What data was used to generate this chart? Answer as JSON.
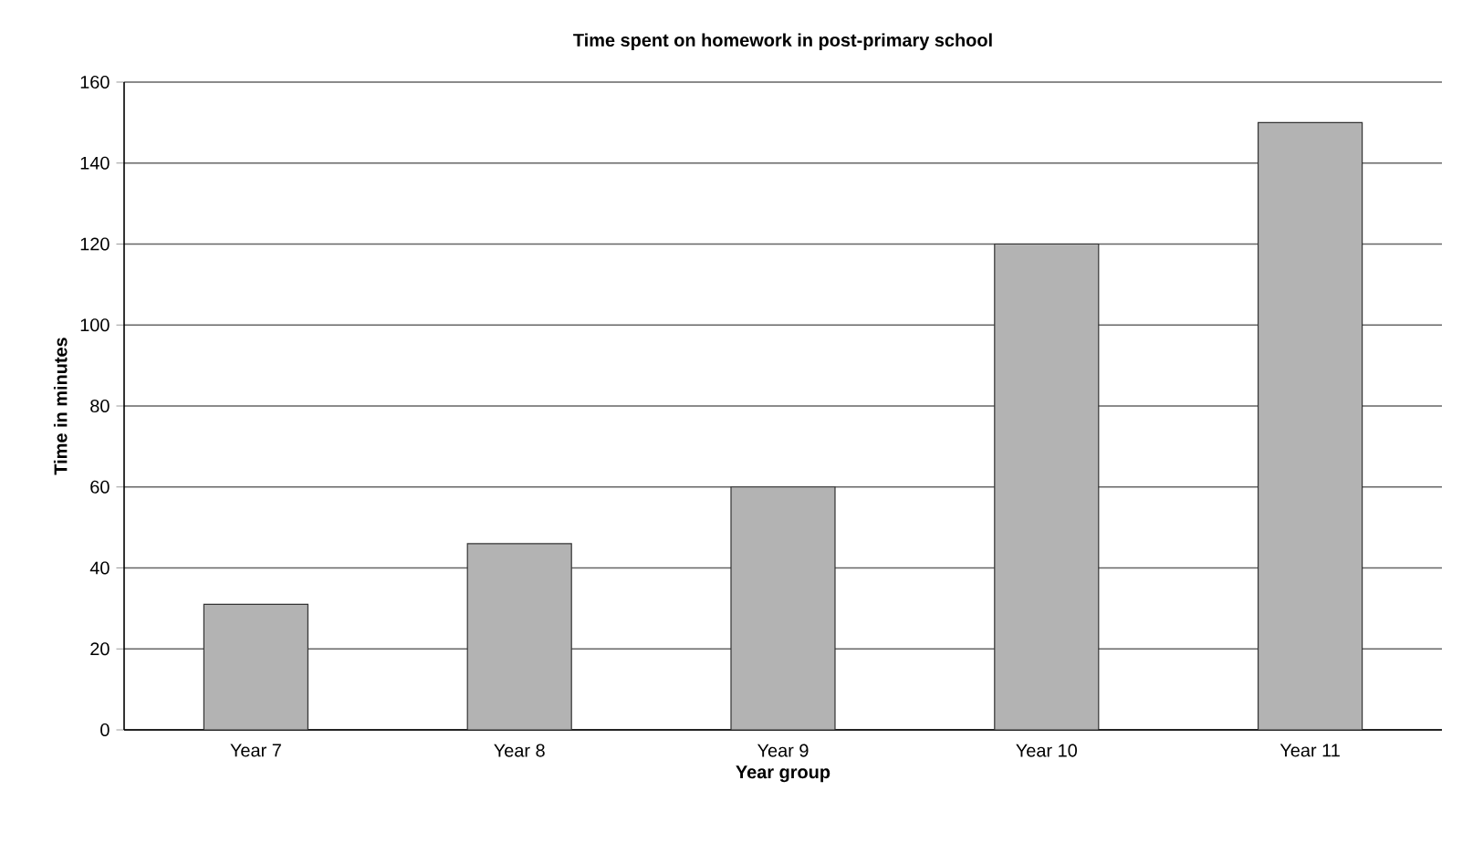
{
  "chart_data": {
    "type": "bar",
    "title": "Time spent on homework in post-primary school",
    "xlabel": "Year group",
    "ylabel": "Time in minutes",
    "categories": [
      "Year 7",
      "Year 8",
      "Year 9",
      "Year 10",
      "Year 11"
    ],
    "values": [
      31,
      46,
      60,
      120,
      150
    ],
    "color": "#b3b3b3",
    "ylim": [
      0,
      160
    ],
    "yticks": [
      0,
      20,
      40,
      60,
      80,
      100,
      120,
      140,
      160
    ],
    "grid": "y"
  }
}
